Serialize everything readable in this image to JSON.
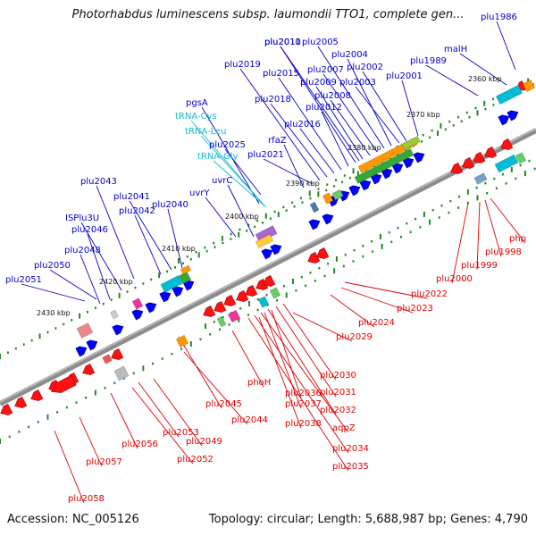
{
  "title": "Photorhabdus luminescens subsp. laumondii TTO1, complete gen...",
  "footer": {
    "accession": "Accession: NC_005126",
    "summary": "Topology: circular; Length: 5,688,987 bp; Genes: 4,790"
  },
  "colors": {
    "forward_label": "#0000cc",
    "reverse_label": "#dd0000",
    "rna_label": "#11bbcc",
    "backbone": "#8c8c8c",
    "tick": "#228822"
  },
  "kbp_markers": [
    "2360 kbp",
    "2370 kbp",
    "2380 kbp",
    "2390 kbp",
    "2400 kbp",
    "2410 kbp",
    "2420 kbp",
    "2430 kbp"
  ],
  "forward_labels": [
    "plu1986",
    "malH",
    "plu1989",
    "plu2001",
    "plu2002",
    "plu2003",
    "plu2004",
    "plu2005",
    "plu2007",
    "plu2008",
    "plu2009",
    "plu2010",
    "plu2011",
    "plu2012",
    "plu2015",
    "plu2016",
    "plu2018",
    "plu2019",
    "plu2021",
    "plu2025",
    "pgsA",
    "rfaZ",
    "uvrC",
    "uvrY",
    "plu2040",
    "plu2041",
    "plu2042",
    "plu2043",
    "ISPlu3U",
    "plu2046",
    "plu2048",
    "plu2050",
    "plu2051"
  ],
  "rna_labels": [
    "tRNA-Cys",
    "tRNA-Leu",
    "tRNA-Gly"
  ],
  "reverse_labels": [
    "php",
    "plu1998",
    "plu1999",
    "plu2000",
    "plu2022",
    "plu2023",
    "plu2024",
    "plu2029",
    "plu2030",
    "plu2031",
    "plu2032",
    "aqpZ",
    "plu2034",
    "plu2035",
    "phoH",
    "plu2036",
    "plu2037",
    "plu2038",
    "plu2045",
    "plu2044",
    "plu2049",
    "plu2053",
    "plu2052",
    "plu2056",
    "plu2057",
    "plu2058"
  ]
}
